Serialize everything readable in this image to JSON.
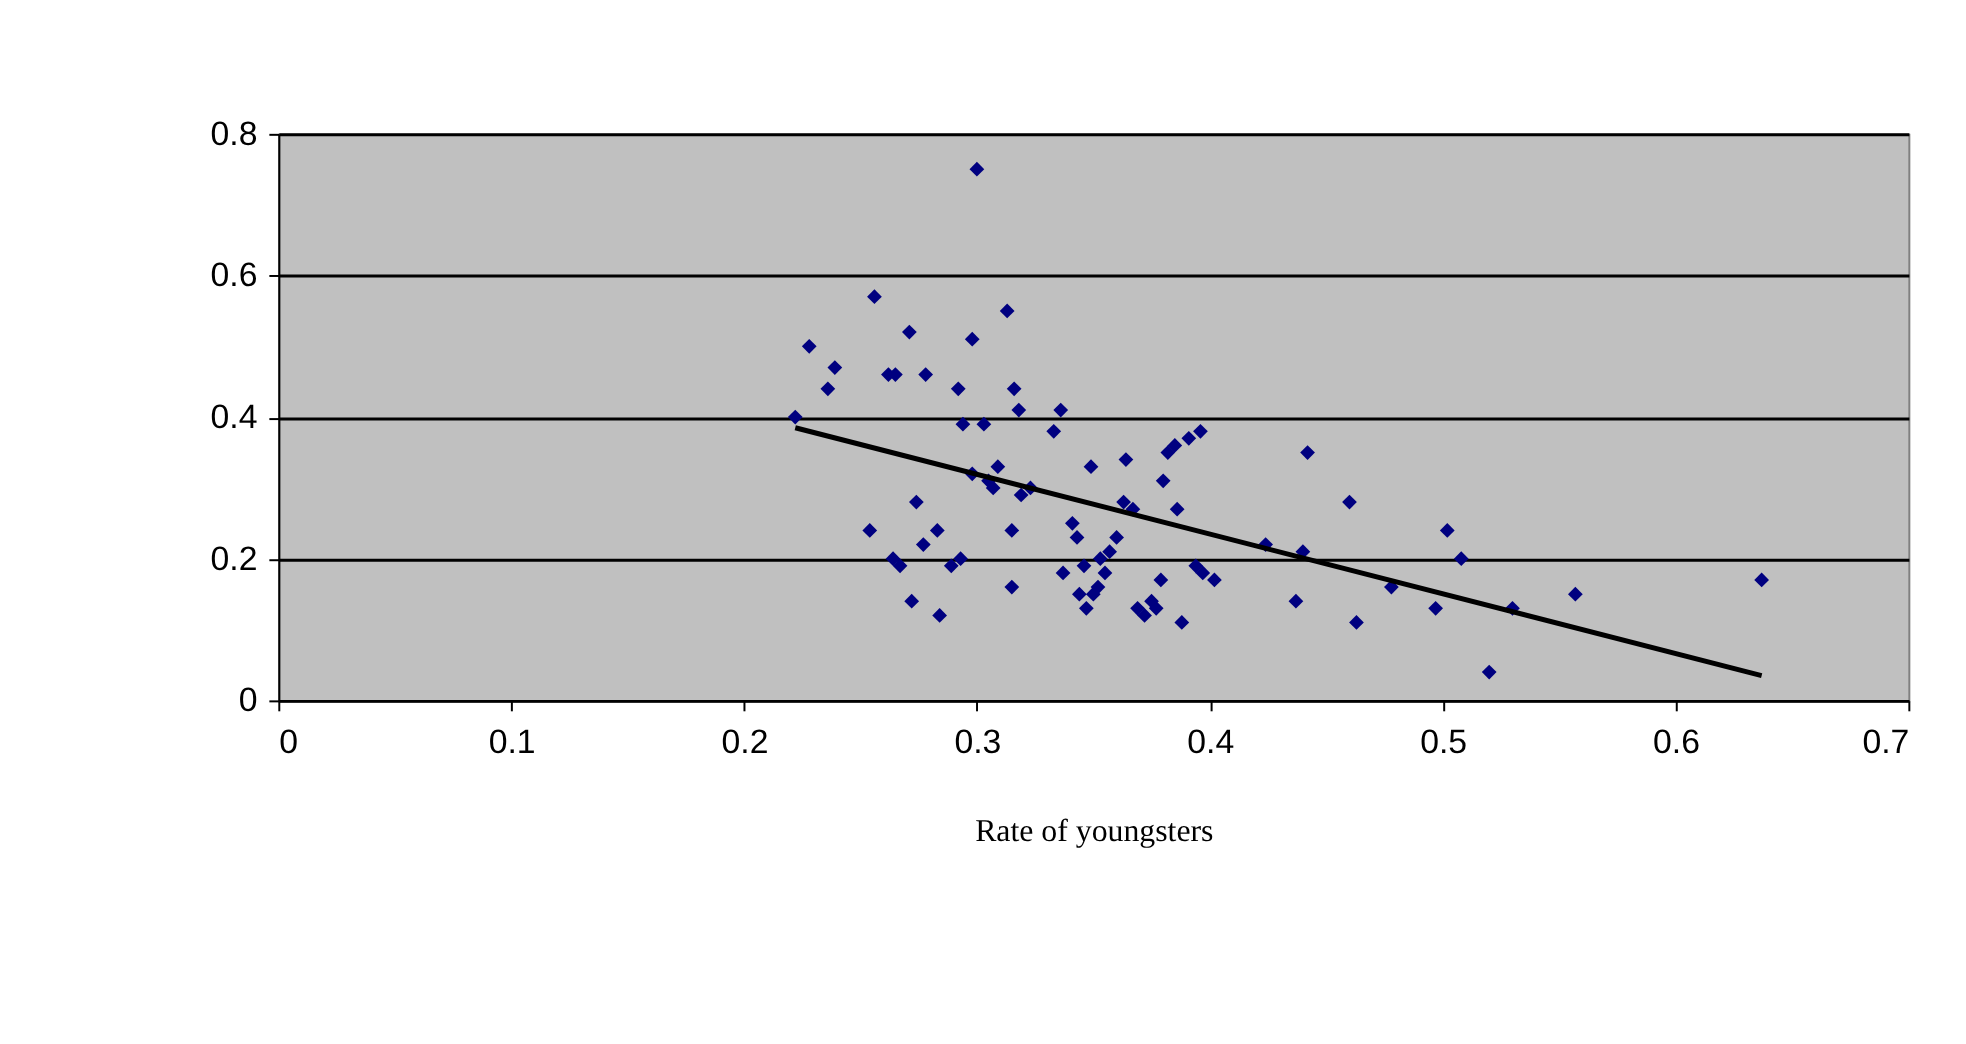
{
  "chart_data": {
    "type": "scatter",
    "xlabel": "Rate of youngsters",
    "xlim": [
      0,
      0.7
    ],
    "ylim": [
      0,
      0.8
    ],
    "xticks": [
      0,
      0.1,
      0.2,
      0.3,
      0.4,
      0.5,
      0.6,
      0.7
    ],
    "yticks": [
      0,
      0.2,
      0.4,
      0.6,
      0.8
    ],
    "grid": "y",
    "marker": "diamond",
    "series": [
      {
        "type": "scatter",
        "color": "#000080",
        "x": [
          0.222,
          0.228,
          0.236,
          0.239,
          0.254,
          0.256,
          0.262,
          0.265,
          0.264,
          0.267,
          0.271,
          0.272,
          0.274,
          0.277,
          0.278,
          0.283,
          0.284,
          0.289,
          0.292,
          0.293,
          0.294,
          0.298,
          0.298,
          0.3,
          0.303,
          0.305,
          0.307,
          0.309,
          0.313,
          0.315,
          0.315,
          0.316,
          0.318,
          0.319,
          0.323,
          0.333,
          0.336,
          0.337,
          0.341,
          0.343,
          0.344,
          0.346,
          0.347,
          0.349,
          0.35,
          0.352,
          0.353,
          0.355,
          0.357,
          0.36,
          0.363,
          0.364,
          0.367,
          0.369,
          0.372,
          0.375,
          0.377,
          0.379,
          0.38,
          0.382,
          0.385,
          0.386,
          0.388,
          0.391,
          0.394,
          0.396,
          0.397,
          0.402,
          0.424,
          0.437,
          0.44,
          0.442,
          0.46,
          0.463,
          0.478,
          0.497,
          0.502,
          0.508,
          0.52,
          0.53,
          0.557,
          0.637
        ],
        "values": [
          0.4,
          0.5,
          0.44,
          0.47,
          0.24,
          0.57,
          0.46,
          0.46,
          0.2,
          0.19,
          0.52,
          0.14,
          0.28,
          0.22,
          0.46,
          0.24,
          0.12,
          0.19,
          0.44,
          0.2,
          0.39,
          0.51,
          0.32,
          0.75,
          0.39,
          0.31,
          0.3,
          0.33,
          0.55,
          0.24,
          0.16,
          0.44,
          0.41,
          0.29,
          0.3,
          0.38,
          0.41,
          0.18,
          0.25,
          0.23,
          0.15,
          0.19,
          0.13,
          0.33,
          0.15,
          0.16,
          0.2,
          0.18,
          0.21,
          0.23,
          0.28,
          0.34,
          0.27,
          0.13,
          0.12,
          0.14,
          0.13,
          0.17,
          0.31,
          0.35,
          0.36,
          0.27,
          0.11,
          0.37,
          0.19,
          0.38,
          0.18,
          0.17,
          0.22,
          0.14,
          0.21,
          0.35,
          0.28,
          0.11,
          0.16,
          0.13,
          0.24,
          0.2,
          0.04,
          0.13,
          0.15,
          0.17
        ]
      },
      {
        "type": "line",
        "color": "#000000",
        "x": [
          0.222,
          0.637
        ],
        "values": [
          0.385,
          0.035
        ],
        "marker": "none",
        "line_style": "solid"
      }
    ]
  }
}
